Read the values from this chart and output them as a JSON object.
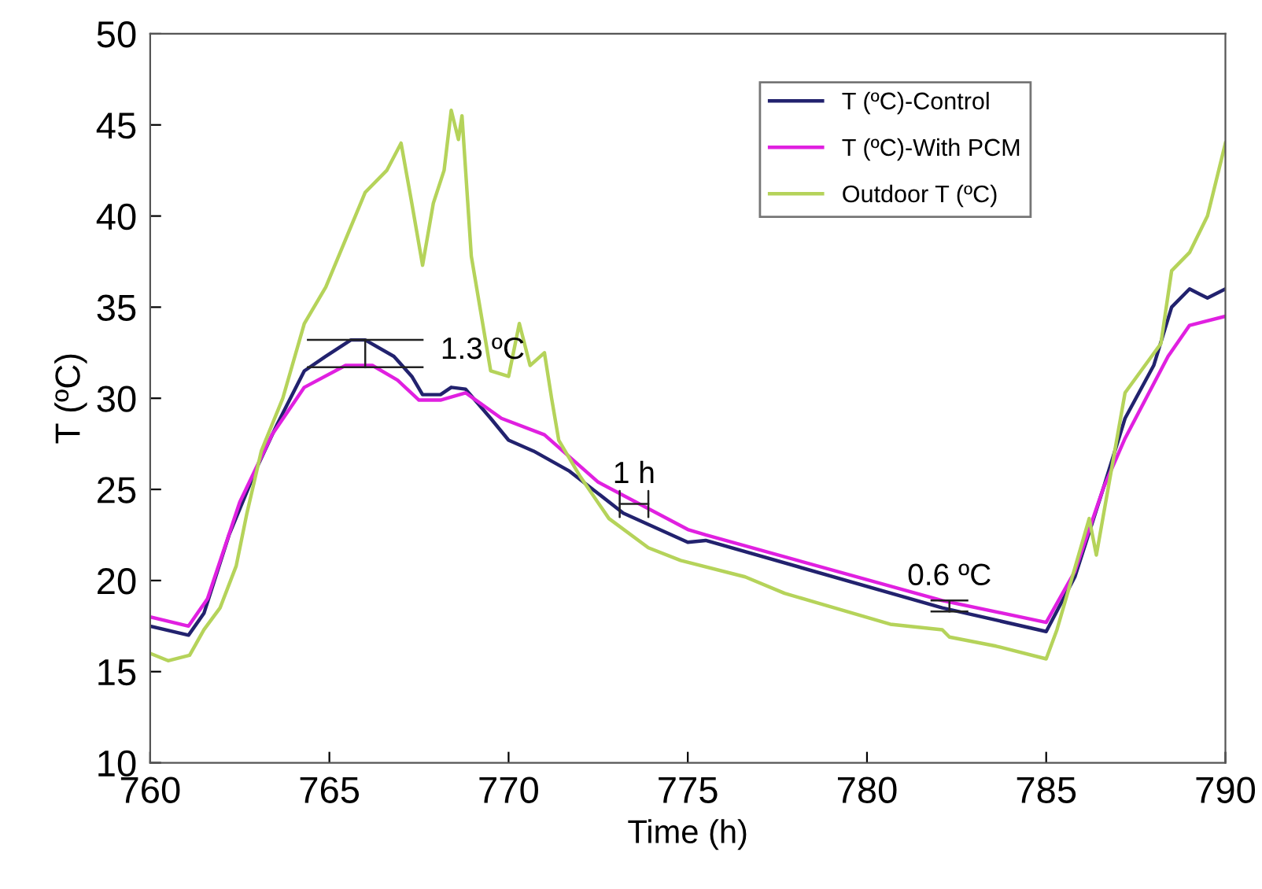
{
  "chart_data": {
    "type": "line",
    "xlabel": "Time (h)",
    "ylabel": "T (ºC)",
    "xlim": [
      760,
      790
    ],
    "xticks": [
      760,
      765,
      770,
      775,
      780,
      785,
      790
    ],
    "ylim": [
      10,
      50
    ],
    "yticks": [
      10,
      15,
      20,
      25,
      30,
      35,
      40,
      45,
      50
    ],
    "grid": false,
    "legend": "top right",
    "marker": "none",
    "line_style": "solid",
    "annotations": [
      {
        "text": "1.3 ºC",
        "x": 766.0,
        "y": 33.2
      },
      {
        "text": "1 h",
        "x": 773.5,
        "y": 24.2
      },
      {
        "text": "0.6 ºC",
        "x": 782.3,
        "y": 18.6
      }
    ],
    "series": [
      {
        "name": "T (ºC)-Control",
        "color": "#22226e",
        "x": [
          760.0,
          761.07,
          761.5,
          762.2,
          763.0,
          763.55,
          764.3,
          764.9,
          765.6,
          766.0,
          766.8,
          767.3,
          767.6,
          768.1,
          768.4,
          768.8,
          769.5,
          770.0,
          770.7,
          771.7,
          773.2,
          775.0,
          775.5,
          782.1,
          785.0,
          785.8,
          786.6,
          787.2,
          788.0,
          788.5,
          789.0,
          789.5,
          790.0
        ],
        "values": [
          17.5,
          17.0,
          18.2,
          22.5,
          26.3,
          28.6,
          31.5,
          32.3,
          33.2,
          33.2,
          32.3,
          31.2,
          30.2,
          30.2,
          30.6,
          30.5,
          28.9,
          27.7,
          27.1,
          26.0,
          23.7,
          22.1,
          22.2,
          18.5,
          17.2,
          20.2,
          25.1,
          28.9,
          31.8,
          35.0,
          36.0,
          35.5,
          36.0
        ]
      },
      {
        "name": "T (ºC)-With PCM",
        "color": "#e020e0",
        "x": [
          760.0,
          761.07,
          761.6,
          762.5,
          763.4,
          764.3,
          765.45,
          766.2,
          766.9,
          767.5,
          768.1,
          768.8,
          769.8,
          771.0,
          772.5,
          775.0,
          775.5,
          782.1,
          785.0,
          785.8,
          786.6,
          787.2,
          788.4,
          789.0,
          790.0
        ],
        "values": [
          18.0,
          17.5,
          19.0,
          24.3,
          28.0,
          30.6,
          31.8,
          31.8,
          31.0,
          29.9,
          29.9,
          30.3,
          28.9,
          28.0,
          25.4,
          22.8,
          22.5,
          18.9,
          17.7,
          20.5,
          25.1,
          27.8,
          32.3,
          34.0,
          34.5
        ]
      },
      {
        "name": "Outdoor T (ºC)",
        "color": "#b5d35a",
        "x": [
          760.0,
          760.5,
          761.1,
          761.5,
          761.95,
          762.4,
          762.7,
          763.1,
          763.7,
          764.3,
          764.9,
          765.45,
          766.0,
          766.6,
          767.0,
          767.3,
          767.6,
          767.9,
          768.2,
          768.4,
          768.6,
          768.7,
          768.96,
          769.5,
          770.0,
          770.3,
          770.6,
          771.0,
          771.2,
          771.4,
          772.0,
          772.8,
          773.9,
          774.8,
          776.6,
          777.7,
          780.65,
          782.1,
          782.3,
          783.6,
          785.0,
          785.3,
          786.2,
          786.4,
          787.2,
          788.2,
          788.5,
          789.0,
          789.5,
          790.0
        ],
        "values": [
          16.0,
          15.6,
          15.9,
          17.3,
          18.5,
          20.8,
          23.7,
          27.1,
          30.0,
          34.1,
          36.1,
          38.7,
          41.3,
          42.5,
          44.0,
          40.7,
          37.3,
          40.7,
          42.5,
          45.8,
          44.2,
          45.5,
          37.8,
          31.5,
          31.2,
          34.1,
          31.8,
          32.5,
          30.0,
          27.7,
          25.7,
          23.4,
          21.8,
          21.1,
          20.2,
          19.3,
          17.6,
          17.3,
          16.9,
          16.4,
          15.7,
          17.3,
          23.4,
          21.4,
          30.3,
          33.0,
          37.0,
          38.0,
          40.0,
          44.0
        ]
      }
    ]
  }
}
